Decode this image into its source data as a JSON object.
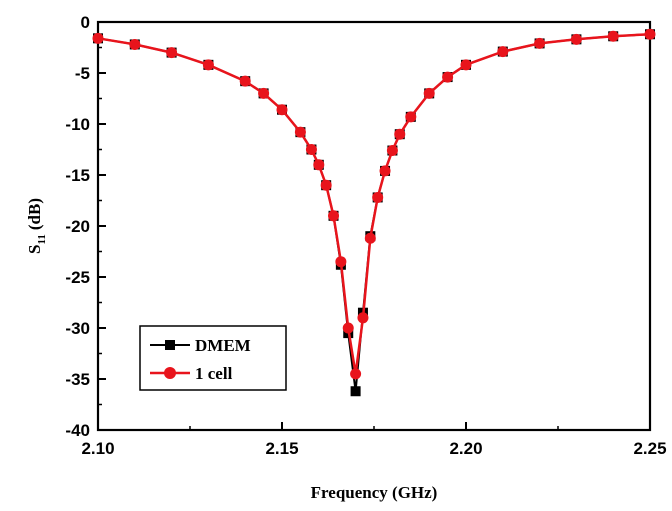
{
  "chart_data": {
    "type": "line",
    "title": "",
    "xlabel": "Frequency (GHz)",
    "ylabel": "S11 (dB)",
    "ylabel_main": "S",
    "ylabel_sub": "11",
    "ylabel_unit": "(dB)",
    "xlim": [
      2.1,
      2.25
    ],
    "ylim": [
      -40,
      0
    ],
    "x_ticks": [
      2.1,
      2.15,
      2.2,
      2.25
    ],
    "x_tick_labels": [
      "2.10",
      "2.15",
      "2.20",
      "2.25"
    ],
    "y_ticks": [
      0,
      -5,
      -10,
      -15,
      -20,
      -25,
      -30,
      -35,
      -40
    ],
    "y_tick_labels": [
      "0",
      "-5",
      "-10",
      "-15",
      "-20",
      "-25",
      "-30",
      "-35",
      "-40"
    ],
    "grid": false,
    "legend_position": "bottom-left",
    "series": [
      {
        "name": "DMEM",
        "color": "#000000",
        "marker": "square",
        "x": [
          2.1,
          2.11,
          2.12,
          2.13,
          2.14,
          2.145,
          2.15,
          2.155,
          2.158,
          2.16,
          2.162,
          2.164,
          2.166,
          2.168,
          2.17,
          2.172,
          2.174,
          2.176,
          2.178,
          2.18,
          2.182,
          2.185,
          2.19,
          2.195,
          2.2,
          2.21,
          2.22,
          2.23,
          2.24,
          2.25
        ],
        "y": [
          -1.6,
          -2.2,
          -3.0,
          -4.2,
          -5.8,
          -7.0,
          -8.6,
          -10.8,
          -12.5,
          -14.0,
          -16.0,
          -19.0,
          -23.8,
          -30.5,
          -36.2,
          -28.5,
          -21.0,
          -17.2,
          -14.6,
          -12.6,
          -11.0,
          -9.3,
          -7.0,
          -5.4,
          -4.2,
          -2.9,
          -2.1,
          -1.7,
          -1.4,
          -1.2
        ]
      },
      {
        "name": "1 cell",
        "color": "#e8141c",
        "marker": "circle",
        "x": [
          2.1,
          2.11,
          2.12,
          2.13,
          2.14,
          2.145,
          2.15,
          2.155,
          2.158,
          2.16,
          2.162,
          2.164,
          2.166,
          2.168,
          2.17,
          2.172,
          2.174,
          2.176,
          2.178,
          2.18,
          2.182,
          2.185,
          2.19,
          2.195,
          2.2,
          2.21,
          2.22,
          2.23,
          2.24,
          2.25
        ],
        "y": [
          -1.6,
          -2.2,
          -3.0,
          -4.2,
          -5.8,
          -7.0,
          -8.6,
          -10.8,
          -12.5,
          -14.0,
          -16.0,
          -19.0,
          -23.5,
          -30.0,
          -34.5,
          -29.0,
          -21.2,
          -17.2,
          -14.6,
          -12.6,
          -11.0,
          -9.3,
          -7.0,
          -5.4,
          -4.2,
          -2.9,
          -2.1,
          -1.7,
          -1.4,
          -1.2
        ]
      }
    ]
  }
}
